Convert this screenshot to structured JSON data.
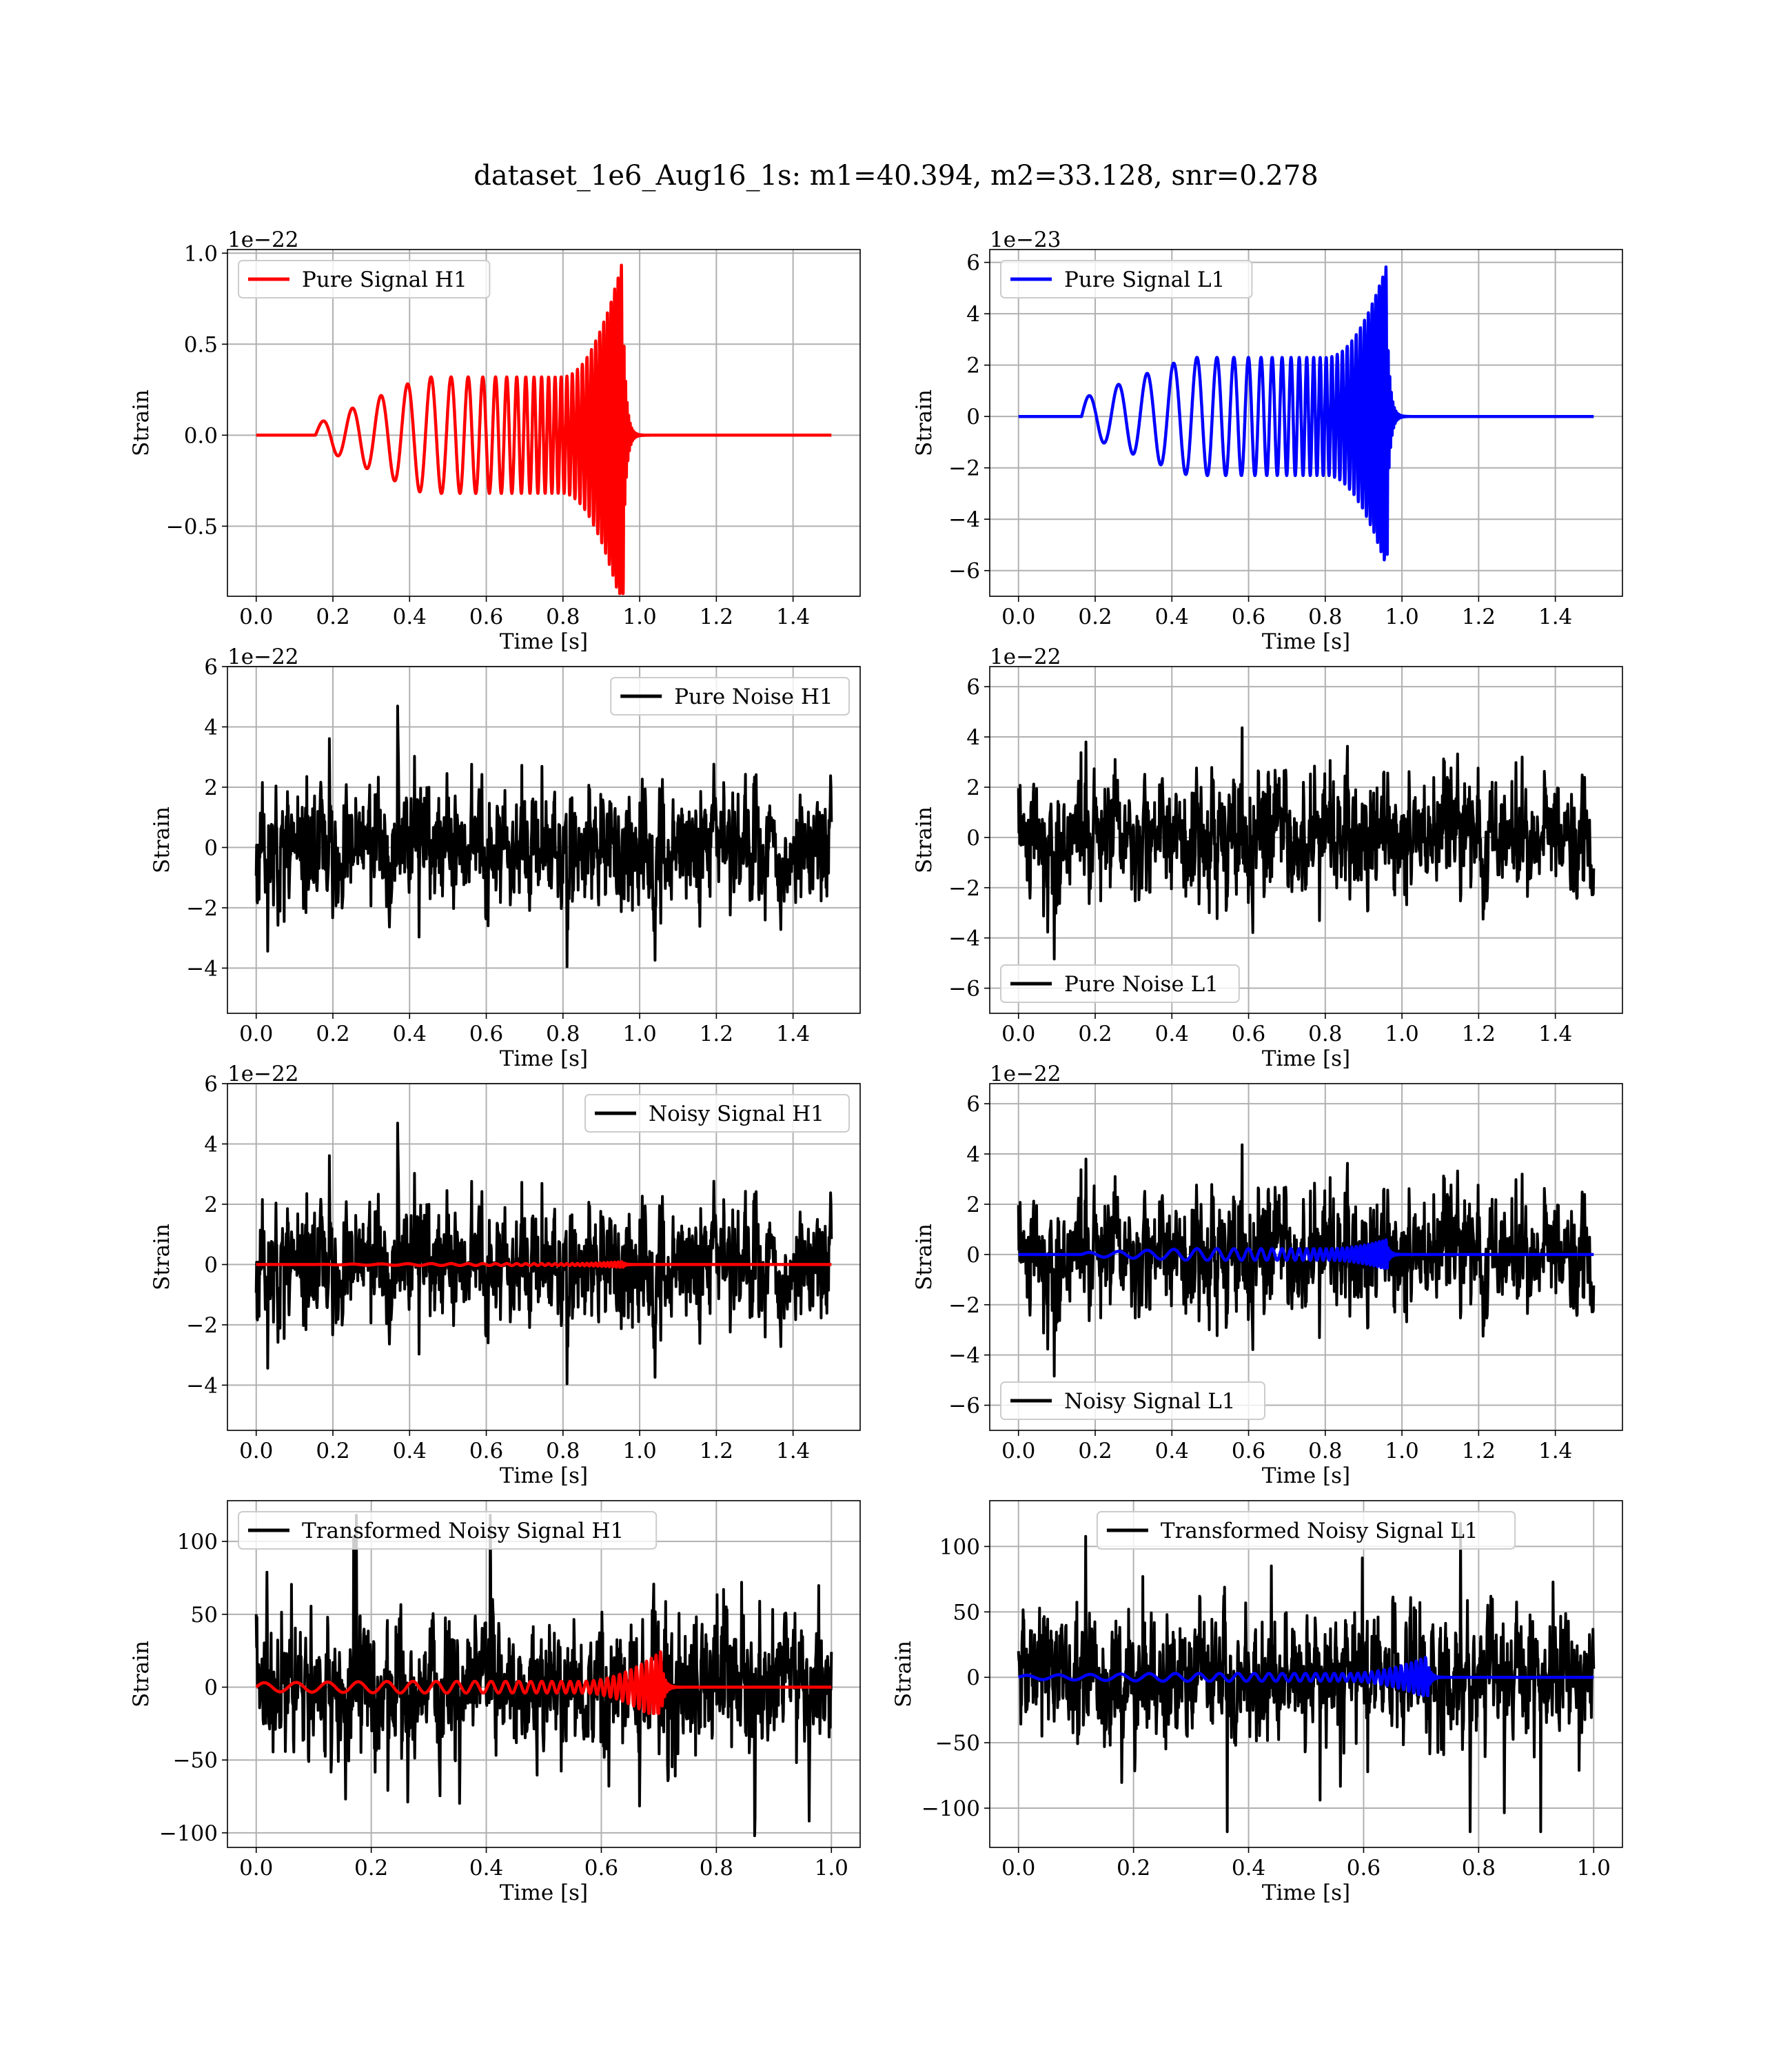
{
  "figure": {
    "title": "dataset_1e6_Aug16_1s: m1=40.394, m2=33.128, snr=0.278"
  },
  "colors": {
    "h1_signal": "#ff0000",
    "l1_signal": "#0000ff",
    "noise": "#000000"
  },
  "chart_data": [
    {
      "id": "pure-signal-h1",
      "type": "line",
      "xlabel": "Time [s]",
      "ylabel": "Strain",
      "offset_text": "1e−22",
      "xlim": [
        -0.075,
        1.575
      ],
      "ylim": [
        -0.885,
        1.02
      ],
      "xticks": [
        0.0,
        0.2,
        0.4,
        0.6,
        0.8,
        1.0,
        1.2,
        1.4
      ],
      "xtick_labels": [
        "0.0",
        "0.2",
        "0.4",
        "0.6",
        "0.8",
        "1.0",
        "1.2",
        "1.4"
      ],
      "yticks": [
        -0.5,
        0.0,
        0.5,
        1.0
      ],
      "ytick_labels": [
        "−0.5",
        "0.0",
        "0.5",
        "1.0"
      ],
      "grid": true,
      "legend": {
        "position": "upper left",
        "entries": [
          {
            "label": "Pure Signal H1",
            "color": "#ff0000"
          }
        ]
      },
      "series": [
        {
          "name": "Pure Signal H1",
          "color": "#ff0000",
          "kind": "chirp",
          "params": {
            "t0": 0.155,
            "tc": 0.958,
            "tend": 1.5,
            "amp_start": 0.06,
            "amp_mid": 0.32,
            "amp_peak": 0.98,
            "amp_min": -0.87,
            "f0": 13,
            "f1": 120,
            "ring_freq": 250,
            "ring_decay": 0.008
          }
        }
      ]
    },
    {
      "id": "pure-signal-l1",
      "type": "line",
      "xlabel": "Time [s]",
      "ylabel": "Strain",
      "offset_text": "1e−23",
      "xlim": [
        -0.075,
        1.575
      ],
      "ylim": [
        -7.0,
        6.5
      ],
      "xticks": [
        0.0,
        0.2,
        0.4,
        0.6,
        0.8,
        1.0,
        1.2,
        1.4
      ],
      "xtick_labels": [
        "0.0",
        "0.2",
        "0.4",
        "0.6",
        "0.8",
        "1.0",
        "1.2",
        "1.4"
      ],
      "yticks": [
        -6,
        -4,
        -2,
        0,
        2,
        4,
        6
      ],
      "ytick_labels": [
        "−6",
        "−4",
        "−2",
        "0",
        "2",
        "4",
        "6"
      ],
      "grid": true,
      "legend": {
        "position": "upper left",
        "entries": [
          {
            "label": "Pure Signal L1",
            "color": "#0000ff"
          }
        ]
      },
      "series": [
        {
          "name": "Pure Signal L1",
          "color": "#0000ff",
          "kind": "chirp",
          "params": {
            "t0": 0.165,
            "tc": 0.962,
            "tend": 1.5,
            "amp_start": 0.7,
            "amp_mid": 2.3,
            "amp_peak": 6.0,
            "amp_min": -6.5,
            "f0": 13,
            "f1": 120,
            "ring_freq": 250,
            "ring_decay": 0.008
          }
        }
      ]
    },
    {
      "id": "pure-noise-h1",
      "type": "line",
      "xlabel": "Time [s]",
      "ylabel": "Strain",
      "offset_text": "1e−22",
      "xlim": [
        -0.075,
        1.575
      ],
      "ylim": [
        -5.5,
        6.0
      ],
      "xticks": [
        0.0,
        0.2,
        0.4,
        0.6,
        0.8,
        1.0,
        1.2,
        1.4
      ],
      "xtick_labels": [
        "0.0",
        "0.2",
        "0.4",
        "0.6",
        "0.8",
        "1.0",
        "1.2",
        "1.4"
      ],
      "yticks": [
        -4,
        -2,
        0,
        2,
        4,
        6
      ],
      "ytick_labels": [
        "−4",
        "−2",
        "0",
        "2",
        "4",
        "6"
      ],
      "grid": true,
      "legend": {
        "position": "upper right",
        "entries": [
          {
            "label": "Pure Noise H1",
            "color": "#000000"
          }
        ]
      },
      "series": [
        {
          "name": "Pure Noise H1",
          "color": "#000000",
          "kind": "noise",
          "params": {
            "seed": 11,
            "tstart": 0.0,
            "tend": 1.5,
            "n": 1400,
            "std": 1.5,
            "ymin": -5.0,
            "ymax": 5.5
          }
        }
      ]
    },
    {
      "id": "pure-noise-l1",
      "type": "line",
      "xlabel": "Time [s]",
      "ylabel": "Strain",
      "offset_text": "1e−22",
      "xlim": [
        -0.075,
        1.575
      ],
      "ylim": [
        -7.0,
        6.8
      ],
      "xticks": [
        0.0,
        0.2,
        0.4,
        0.6,
        0.8,
        1.0,
        1.2,
        1.4
      ],
      "xtick_labels": [
        "0.0",
        "0.2",
        "0.4",
        "0.6",
        "0.8",
        "1.0",
        "1.2",
        "1.4"
      ],
      "yticks": [
        -6,
        -4,
        -2,
        0,
        2,
        4,
        6
      ],
      "ytick_labels": [
        "−6",
        "−4",
        "−2",
        "0",
        "2",
        "4",
        "6"
      ],
      "grid": true,
      "legend": {
        "position": "lower left",
        "entries": [
          {
            "label": "Pure Noise L1",
            "color": "#000000"
          }
        ]
      },
      "series": [
        {
          "name": "Pure Noise L1",
          "color": "#000000",
          "kind": "noise",
          "params": {
            "seed": 23,
            "tstart": 0.0,
            "tend": 1.5,
            "n": 1400,
            "std": 1.8,
            "ymin": -6.5,
            "ymax": 6.3
          }
        }
      ]
    },
    {
      "id": "noisy-signal-h1",
      "type": "line",
      "xlabel": "Time [s]",
      "ylabel": "Strain",
      "offset_text": "1e−22",
      "xlim": [
        -0.075,
        1.575
      ],
      "ylim": [
        -5.5,
        6.0
      ],
      "xticks": [
        0.0,
        0.2,
        0.4,
        0.6,
        0.8,
        1.0,
        1.2,
        1.4
      ],
      "xtick_labels": [
        "0.0",
        "0.2",
        "0.4",
        "0.6",
        "0.8",
        "1.0",
        "1.2",
        "1.4"
      ],
      "yticks": [
        -4,
        -2,
        0,
        2,
        4,
        6
      ],
      "ytick_labels": [
        "−4",
        "−2",
        "0",
        "2",
        "4",
        "6"
      ],
      "grid": true,
      "legend": {
        "position": "upper right",
        "entries": [
          {
            "label": "Noisy Signal H1",
            "color": "#000000"
          }
        ]
      },
      "series": [
        {
          "name": "Noisy Signal H1",
          "color": "#000000",
          "kind": "noise",
          "params": {
            "seed": 11,
            "tstart": 0.0,
            "tend": 1.5,
            "n": 1400,
            "std": 1.5,
            "ymin": -5.0,
            "ymax": 5.5
          }
        },
        {
          "color": "#ff0000",
          "kind": "chirp",
          "params": {
            "t0": 0.155,
            "tc": 0.958,
            "tend": 1.5,
            "amp_start": 0.006,
            "amp_mid": 0.032,
            "amp_peak": 0.098,
            "amp_min": -0.087,
            "f0": 13,
            "f1": 120,
            "ring_freq": 250,
            "ring_decay": 0.008,
            "scale": 10
          }
        }
      ]
    },
    {
      "id": "noisy-signal-l1",
      "type": "line",
      "xlabel": "Time [s]",
      "ylabel": "Strain",
      "offset_text": "1e−22",
      "xlim": [
        -0.075,
        1.575
      ],
      "ylim": [
        -7.0,
        6.8
      ],
      "xticks": [
        0.0,
        0.2,
        0.4,
        0.6,
        0.8,
        1.0,
        1.2,
        1.4
      ],
      "xtick_labels": [
        "0.0",
        "0.2",
        "0.4",
        "0.6",
        "0.8",
        "1.0",
        "1.2",
        "1.4"
      ],
      "yticks": [
        -6,
        -4,
        -2,
        0,
        2,
        4,
        6
      ],
      "ytick_labels": [
        "−6",
        "−4",
        "−2",
        "0",
        "2",
        "4",
        "6"
      ],
      "grid": true,
      "legend": {
        "position": "lower left",
        "entries": [
          {
            "label": "Noisy Signal L1",
            "color": "#000000"
          }
        ]
      },
      "series": [
        {
          "name": "Noisy Signal L1",
          "color": "#000000",
          "kind": "noise",
          "params": {
            "seed": 23,
            "tstart": 0.0,
            "tend": 1.5,
            "n": 1400,
            "std": 1.8,
            "ymin": -6.5,
            "ymax": 6.3
          }
        },
        {
          "color": "#0000ff",
          "kind": "chirp",
          "params": {
            "t0": 0.165,
            "tc": 0.962,
            "tend": 1.5,
            "amp_start": 0.07,
            "amp_mid": 0.23,
            "amp_peak": 0.6,
            "amp_min": -0.65,
            "f0": 13,
            "f1": 120,
            "ring_freq": 250,
            "ring_decay": 0.008
          }
        }
      ]
    },
    {
      "id": "transformed-noisy-signal-h1",
      "type": "line",
      "xlabel": "Time [s]",
      "ylabel": "Strain",
      "offset_text": "",
      "xlim": [
        -0.05,
        1.05
      ],
      "ylim": [
        -110,
        128
      ],
      "xticks": [
        0.0,
        0.2,
        0.4,
        0.6,
        0.8,
        1.0
      ],
      "xtick_labels": [
        "0.0",
        "0.2",
        "0.4",
        "0.6",
        "0.8",
        "1.0"
      ],
      "yticks": [
        -100,
        -50,
        0,
        50,
        100
      ],
      "ytick_labels": [
        "−100",
        "−50",
        "0",
        "50",
        "100"
      ],
      "grid": true,
      "legend": {
        "position": "upper left",
        "entries": [
          {
            "label": "Transformed Noisy Signal H1",
            "color": "#000000"
          }
        ]
      },
      "series": [
        {
          "name": "Transformed Noisy Signal H1",
          "color": "#000000",
          "kind": "noise",
          "params": {
            "seed": 37,
            "tstart": 0.0,
            "tend": 1.0,
            "n": 1500,
            "std": 36,
            "ymin": -102,
            "ymax": 118
          }
        },
        {
          "color": "#ff0000",
          "kind": "chirp",
          "params": {
            "t0": 0.0,
            "tc": 0.705,
            "tend": 1.0,
            "amp_start": 3,
            "amp_mid": 4,
            "amp_peak": 25,
            "amp_min": -18,
            "f0": 18,
            "f1": 130,
            "ring_freq": 250,
            "ring_decay": 0.006
          }
        }
      ]
    },
    {
      "id": "transformed-noisy-signal-l1",
      "type": "line",
      "xlabel": "Time [s]",
      "ylabel": "Strain",
      "offset_text": "",
      "xlim": [
        -0.05,
        1.05
      ],
      "ylim": [
        -130,
        135
      ],
      "xticks": [
        0.0,
        0.2,
        0.4,
        0.6,
        0.8,
        1.0
      ],
      "xtick_labels": [
        "0.0",
        "0.2",
        "0.4",
        "0.6",
        "0.8",
        "1.0"
      ],
      "yticks": [
        -100,
        -50,
        0,
        50,
        100
      ],
      "ytick_labels": [
        "−100",
        "−50",
        "0",
        "50",
        "100"
      ],
      "grid": true,
      "legend": {
        "position": "upper center",
        "entries": [
          {
            "label": "Transformed Noisy Signal L1",
            "color": "#000000"
          }
        ]
      },
      "series": [
        {
          "name": "Transformed Noisy Signal L1",
          "color": "#000000",
          "kind": "noise",
          "params": {
            "seed": 53,
            "tstart": 0.0,
            "tend": 1.0,
            "n": 1500,
            "std": 36,
            "ymin": -118,
            "ymax": 125
          }
        },
        {
          "color": "#0000ff",
          "kind": "chirp",
          "params": {
            "t0": 0.0,
            "tc": 0.712,
            "tend": 1.0,
            "amp_start": 1.5,
            "amp_mid": 3,
            "amp_peak": 16,
            "amp_min": -14,
            "f0": 18,
            "f1": 130,
            "ring_freq": 250,
            "ring_decay": 0.006
          }
        }
      ]
    }
  ]
}
